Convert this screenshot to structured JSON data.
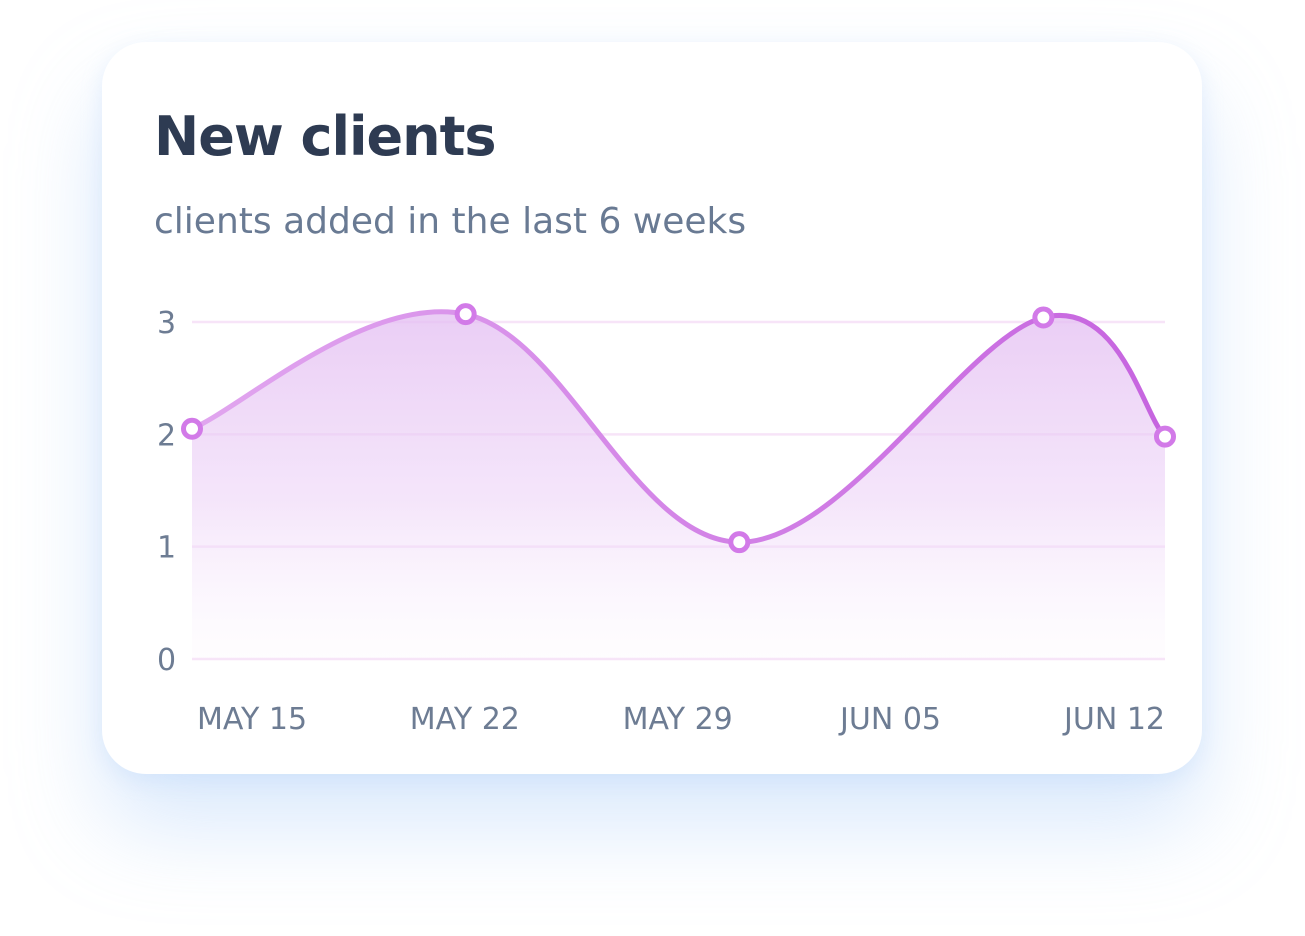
{
  "card": {
    "title": "New clients",
    "subtitle": "clients added in the last 6 weeks"
  },
  "chart_data": {
    "type": "area",
    "title": "New clients",
    "subtitle": "clients added in the last 6 weeks",
    "xlabel": "",
    "ylabel": "",
    "x_tick_labels": [
      "MAY 15",
      "MAY 22",
      "MAY 29",
      "JUN 05",
      "JUN 12"
    ],
    "x_range": [
      "MAY 15",
      "JUN 12"
    ],
    "y_ticks": [
      0,
      1,
      2,
      3
    ],
    "ylim": [
      0,
      3
    ],
    "grid": true,
    "smooth": true,
    "series": [
      {
        "points": [
          {
            "x": "MAY 15",
            "y": 2.05
          },
          {
            "x": "MAY 24",
            "y": 3.07
          },
          {
            "x": "JUN 02",
            "y": 1.04
          },
          {
            "x": "JUN 12",
            "y": 3.04
          },
          {
            "x": "JUN 16",
            "y": 1.98
          }
        ]
      }
    ],
    "colors": {
      "line_start": "#e1a6ef",
      "line_end": "#c664df",
      "fill": "#e7c3f3",
      "grid": "#f7e4f8",
      "marker_fill": "#ffffff",
      "marker_stroke": "#d27ae8"
    }
  }
}
